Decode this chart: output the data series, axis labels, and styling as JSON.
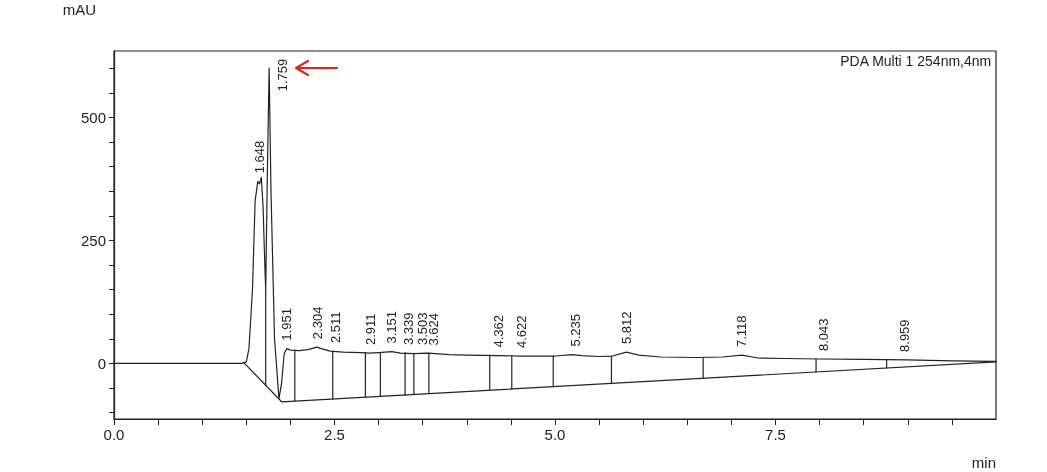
{
  "chart_data": {
    "type": "line",
    "xlabel": "min",
    "ylabel": "mAU",
    "xlim": [
      0,
      10
    ],
    "ylim": [
      -113,
      635
    ],
    "xticks": [
      {
        "value": 0,
        "label": "0.0"
      },
      {
        "value": 0.5,
        "label": null
      },
      {
        "value": 1,
        "label": null
      },
      {
        "value": 1.5,
        "label": null
      },
      {
        "value": 2,
        "label": null
      },
      {
        "value": 2.5,
        "label": "2.5"
      },
      {
        "value": 3,
        "label": null
      },
      {
        "value": 3.5,
        "label": null
      },
      {
        "value": 4,
        "label": null
      },
      {
        "value": 4.5,
        "label": null
      },
      {
        "value": 5,
        "label": "5.0"
      },
      {
        "value": 5.5,
        "label": null
      },
      {
        "value": 6,
        "label": null
      },
      {
        "value": 6.5,
        "label": null
      },
      {
        "value": 7,
        "label": null
      },
      {
        "value": 7.5,
        "label": "7.5"
      },
      {
        "value": 8,
        "label": null
      },
      {
        "value": 8.5,
        "label": null
      },
      {
        "value": 9,
        "label": null
      },
      {
        "value": 9.5,
        "label": null
      }
    ],
    "yticks": [
      {
        "value": -100,
        "label": null
      },
      {
        "value": -50,
        "label": null
      },
      0,
      {
        "value": 50,
        "label": null
      },
      {
        "value": 100,
        "label": null
      },
      {
        "value": 150,
        "label": null
      },
      {
        "value": 200,
        "label": null
      },
      250,
      {
        "value": 300,
        "label": null
      },
      {
        "value": 350,
        "label": null
      },
      {
        "value": 400,
        "label": null
      },
      {
        "value": 450,
        "label": null
      },
      500,
      {
        "value": 550,
        "label": null
      },
      {
        "value": 600,
        "label": null
      }
    ],
    "grid": false,
    "marker": "none",
    "line_style": "solid",
    "series": [
      {
        "color": "#222222",
        "x": [
          0,
          1.45,
          1.5,
          1.53,
          1.57,
          1.6,
          1.63,
          1.65,
          1.67,
          1.69,
          1.71,
          1.72,
          1.74,
          1.759,
          1.78,
          1.82,
          1.87,
          1.9,
          1.93,
          1.96,
          2.0,
          2.1,
          2.2,
          2.3,
          2.35,
          2.45,
          2.6,
          2.8,
          2.9,
          3.0,
          3.15,
          3.25,
          3.4,
          3.55,
          3.65,
          3.8,
          4.0,
          4.36,
          4.6,
          5.0,
          5.2,
          5.3,
          5.5,
          5.65,
          5.81,
          5.95,
          6.2,
          6.6,
          6.9,
          7.12,
          7.3,
          7.6,
          8.0,
          8.5,
          9.0,
          9.5,
          10
        ],
        "values": [
          0,
          0,
          3,
          30,
          150,
          330,
          370,
          365,
          378,
          320,
          200,
          150,
          400,
          600,
          350,
          50,
          -72,
          -40,
          20,
          30,
          27,
          26,
          28,
          33,
          30,
          25,
          23,
          22,
          21,
          22,
          24,
          21,
          20,
          21,
          20,
          18,
          17,
          16,
          15,
          15,
          18,
          16,
          14,
          15,
          23,
          17,
          13,
          12,
          13,
          17,
          11,
          10,
          9,
          8,
          7,
          5,
          4
        ]
      },
      {
        "color": "#222222",
        "x": [
          1.48,
          1.9,
          10
        ],
        "values": [
          0,
          -78,
          3
        ]
      },
      {
        "color": "#222222",
        "x": [
          1.72,
          1.72,
          null,
          2.05,
          2.05,
          null,
          2.48,
          2.48,
          null,
          2.85,
          2.85,
          null,
          3.02,
          3.02,
          null,
          3.3,
          3.3,
          null,
          3.4,
          3.4,
          null,
          3.57,
          3.57,
          null,
          4.26,
          4.26,
          null,
          4.51,
          4.51,
          null,
          4.98,
          4.98,
          null,
          5.64,
          5.64,
          null,
          6.68,
          6.68,
          null,
          7.96,
          7.96,
          null,
          8.76,
          8.76,
          null
        ],
        "values": [
          -45,
          150,
          null,
          -76,
          27,
          null,
          -72,
          25,
          null,
          -68,
          22,
          null,
          -67,
          22,
          null,
          -64,
          22,
          null,
          -63,
          20,
          null,
          -61,
          21,
          null,
          -54,
          17,
          null,
          -52,
          16,
          null,
          -47,
          15,
          null,
          -41,
          15,
          null,
          -30,
          12,
          null,
          -17,
          9,
          null,
          -9,
          7,
          null
        ]
      }
    ],
    "annotations": [
      "PDA Multi 1 254nm,4nm",
      {
        "text": "1.648",
        "x": 1.648,
        "y": 370
      },
      {
        "text": "1.759",
        "x": 1.759,
        "y": 600
      },
      {
        "text": "1.951",
        "x": 1.951,
        "y": 30
      },
      {
        "text": "2.304",
        "x": 2.304,
        "y": 33
      },
      {
        "text": "2.511",
        "x": 2.511,
        "y": 25
      },
      {
        "text": "2.911",
        "x": 2.911,
        "y": 21
      },
      {
        "text": "3.151",
        "x": 3.151,
        "y": 24
      },
      {
        "text": "3.339",
        "x": 3.339,
        "y": 21
      },
      {
        "text": "3.503",
        "x": 3.503,
        "y": 21
      },
      {
        "text": "3.624",
        "x": 3.624,
        "y": 20
      },
      {
        "text": "4.362",
        "x": 4.362,
        "y": 16
      },
      {
        "text": "4.622",
        "x": 4.622,
        "y": 15
      },
      {
        "text": "5.235",
        "x": 5.235,
        "y": 18
      },
      {
        "text": "5.812",
        "x": 5.812,
        "y": 23
      },
      {
        "text": "7.118",
        "x": 7.118,
        "y": 17
      },
      {
        "text": "8.043",
        "x": 8.043,
        "y": 9
      },
      {
        "text": "8.959",
        "x": 8.959,
        "y": 7
      }
    ]
  }
}
